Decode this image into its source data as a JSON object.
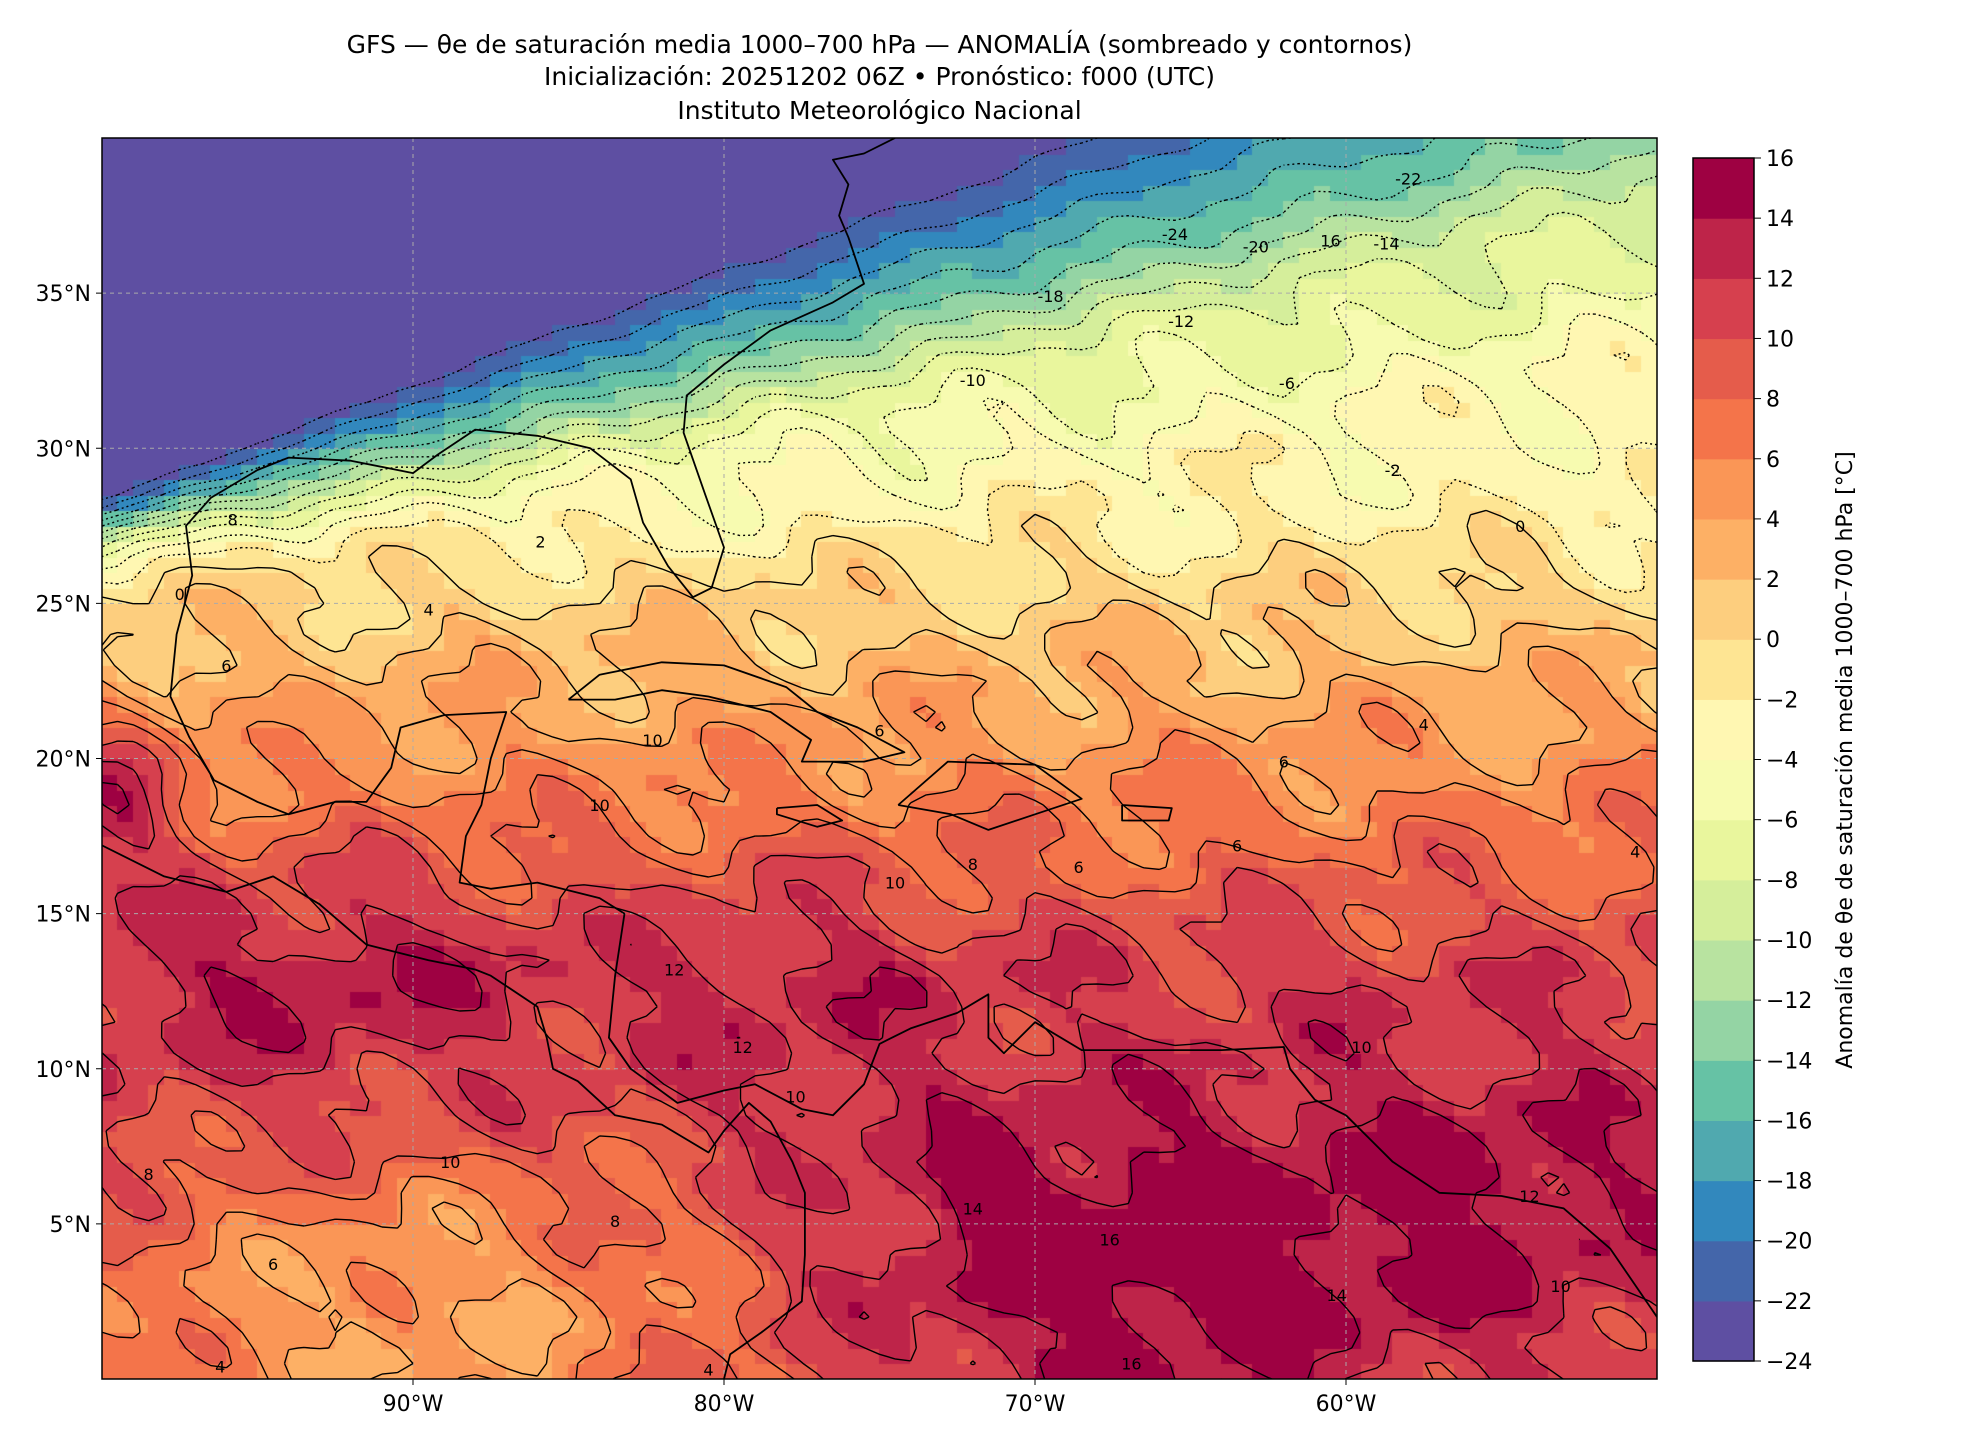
{
  "title": {
    "line1": "GFS — θe de saturación media 1000–700 hPa — ANOMALÍA (sombreado y contornos)",
    "line2": "Inicialización: 20251202 06Z   •   Pronóstico: f000 (UTC)",
    "line3": "Instituto Meteorológico Nacional"
  },
  "chart_data": {
    "type": "heatmap",
    "projection": "PlateCarree",
    "lon_range": [
      -100,
      -50
    ],
    "lat_range": [
      0,
      40
    ],
    "grid": true,
    "x_ticks": [
      {
        "value": -90,
        "label": "90°W"
      },
      {
        "value": -80,
        "label": "80°W"
      },
      {
        "value": -70,
        "label": "70°W"
      },
      {
        "value": -60,
        "label": "60°W"
      }
    ],
    "y_ticks": [
      {
        "value": 5,
        "label": "5°N"
      },
      {
        "value": 10,
        "label": "10°N"
      },
      {
        "value": 15,
        "label": "15°N"
      },
      {
        "value": 20,
        "label": "20°N"
      },
      {
        "value": 25,
        "label": "25°N"
      },
      {
        "value": 30,
        "label": "30°N"
      },
      {
        "value": 35,
        "label": "35°N"
      }
    ],
    "colorbar": {
      "label": "Anomalía de θe de saturación media 1000–700 hPa [°C]",
      "levels": [
        -24,
        -22,
        -20,
        -18,
        -16,
        -14,
        -12,
        -10,
        -8,
        -6,
        -4,
        -2,
        0,
        2,
        4,
        6,
        8,
        10,
        12,
        14,
        16
      ],
      "tick_labels": [
        "−24",
        "−22",
        "−20",
        "−18",
        "−16",
        "−14",
        "−12",
        "−10",
        "−8",
        "−6",
        "−4",
        "−2",
        "0",
        "2",
        "4",
        "6",
        "8",
        "10",
        "12",
        "14",
        "16"
      ],
      "colors": [
        "#5e4fa2",
        "#4466aa",
        "#3288bd",
        "#50a9af",
        "#66c2a5",
        "#94d4a4",
        "#b8e3a0",
        "#d5ee9b",
        "#e9f69d",
        "#f7fbb0",
        "#fff7b2",
        "#fee593",
        "#fdce7e",
        "#fdb065",
        "#fa9656",
        "#f4744a",
        "#e55c4b",
        "#d6404e",
        "#be2449",
        "#9e0142"
      ]
    },
    "contour_labels": [
      {
        "text": "-24",
        "lon": -65.5,
        "lat": 36.9
      },
      {
        "text": "-22",
        "lon": -58.0,
        "lat": 38.7
      },
      {
        "text": "-20",
        "lon": -62.9,
        "lat": 36.5
      },
      {
        "text": "16",
        "lon": -60.5,
        "lat": 36.7
      },
      {
        "text": "-14",
        "lon": -58.7,
        "lat": 36.6
      },
      {
        "text": "-18",
        "lon": -69.5,
        "lat": 34.9
      },
      {
        "text": "-12",
        "lon": -65.3,
        "lat": 34.1
      },
      {
        "text": "-10",
        "lon": -72.0,
        "lat": 32.2
      },
      {
        "text": "-6",
        "lon": -61.9,
        "lat": 32.1
      },
      {
        "text": "-2",
        "lon": -58.5,
        "lat": 29.3
      },
      {
        "text": "0",
        "lon": -54.4,
        "lat": 27.5
      },
      {
        "text": "8",
        "lon": -95.8,
        "lat": 27.7
      },
      {
        "text": "0",
        "lon": -97.5,
        "lat": 25.3
      },
      {
        "text": "2",
        "lon": -85.9,
        "lat": 27.0
      },
      {
        "text": "4",
        "lon": -89.5,
        "lat": 24.8
      },
      {
        "text": "6",
        "lon": -96.0,
        "lat": 23.0
      },
      {
        "text": "10",
        "lon": -82.3,
        "lat": 20.6
      },
      {
        "text": "10",
        "lon": -84.0,
        "lat": 18.5
      },
      {
        "text": "6",
        "lon": -75.0,
        "lat": 20.9
      },
      {
        "text": "8",
        "lon": -72.0,
        "lat": 16.6
      },
      {
        "text": "10",
        "lon": -74.5,
        "lat": 16.0
      },
      {
        "text": "12",
        "lon": -81.6,
        "lat": 13.2
      },
      {
        "text": "12",
        "lon": -79.4,
        "lat": 10.7
      },
      {
        "text": "10",
        "lon": -77.7,
        "lat": 9.1
      },
      {
        "text": "10",
        "lon": -88.8,
        "lat": 7.0
      },
      {
        "text": "8",
        "lon": -98.5,
        "lat": 6.6
      },
      {
        "text": "8",
        "lon": -83.5,
        "lat": 5.1
      },
      {
        "text": "6",
        "lon": -94.5,
        "lat": 3.7
      },
      {
        "text": "14",
        "lon": -72.0,
        "lat": 5.5
      },
      {
        "text": "16",
        "lon": -67.6,
        "lat": 4.5
      },
      {
        "text": "16",
        "lon": -66.9,
        "lat": 0.5
      },
      {
        "text": "14",
        "lon": -60.3,
        "lat": 2.7
      },
      {
        "text": "12",
        "lon": -54.1,
        "lat": 5.9
      },
      {
        "text": "6",
        "lon": -62.0,
        "lat": 19.9
      },
      {
        "text": "6",
        "lon": -63.5,
        "lat": 17.2
      },
      {
        "text": "6",
        "lon": -68.6,
        "lat": 16.5
      },
      {
        "text": "4",
        "lon": -57.5,
        "lat": 21.1
      },
      {
        "text": "4",
        "lon": -50.7,
        "lat": 17.0
      },
      {
        "text": "10",
        "lon": -59.5,
        "lat": 10.7
      },
      {
        "text": "10",
        "lon": -53.1,
        "lat": 3.0
      },
      {
        "text": "4",
        "lon": -96.2,
        "lat": 0.4
      },
      {
        "text": "4",
        "lon": -80.5,
        "lat": 0.3
      }
    ]
  }
}
